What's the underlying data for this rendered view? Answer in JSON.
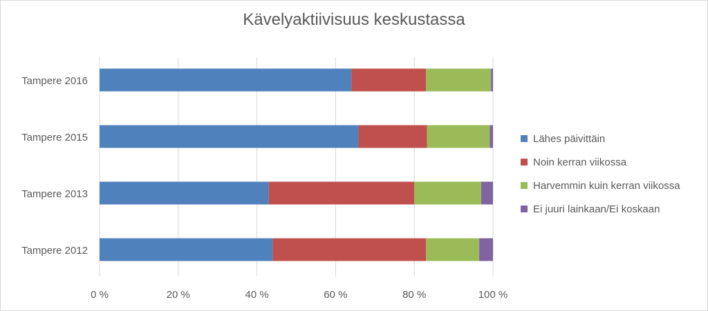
{
  "chart_data": {
    "type": "bar",
    "orientation": "horizontal",
    "stacked": "percent",
    "title": "Kävelyaktiivisuus keskustassa",
    "categories": [
      "Tampere 2016",
      "Tampere 2015",
      "Tampere 2013",
      "Tampere 2012"
    ],
    "series": [
      {
        "name": "Lähes päivittäin",
        "color": "#4f81bd",
        "values": [
          64,
          66,
          43,
          44
        ]
      },
      {
        "name": "Noin kerran viikossa",
        "color": "#c0504d",
        "values": [
          19,
          17.5,
          37,
          39
        ]
      },
      {
        "name": "Harvemmin kuin kerran viikossa",
        "color": "#9bbb59",
        "values": [
          16.5,
          16,
          17,
          13.5
        ]
      },
      {
        "name": "Ei juuri lainkaan/Ei koskaan",
        "color": "#8064a2",
        "values": [
          0.5,
          0.8,
          3,
          3.5
        ]
      }
    ],
    "x_ticks": [
      "0 %",
      "20 %",
      "40 %",
      "60 %",
      "80 %",
      "100 %"
    ],
    "xlim": [
      0,
      100
    ],
    "grid": true,
    "legend_position": "right"
  }
}
